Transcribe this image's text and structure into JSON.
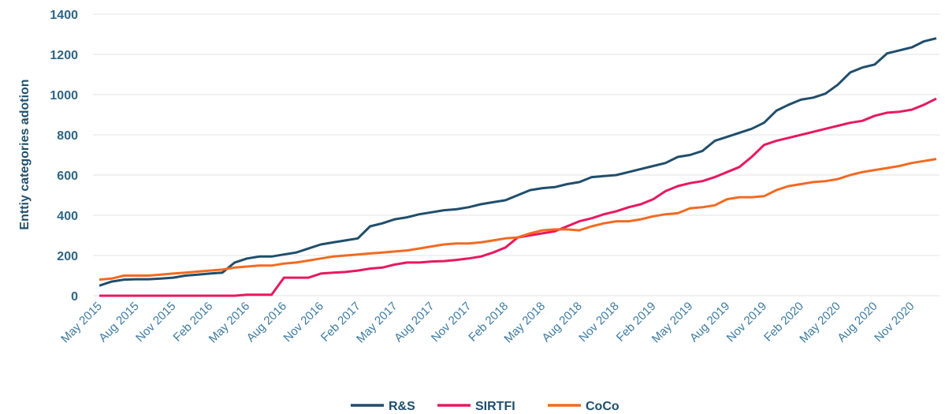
{
  "chart_data": {
    "type": "line",
    "ylabel": "Enttiy categories adotion",
    "categories": [
      "May 2015",
      null,
      null,
      "Aug 2015",
      null,
      null,
      "Nov 2015",
      null,
      null,
      "Feb 2016",
      null,
      null,
      "May 2016",
      null,
      null,
      "Aug 2016",
      null,
      null,
      "Nov 2016",
      null,
      null,
      "Feb 2017",
      null,
      null,
      "May 2017",
      null,
      null,
      "Aug 2017",
      null,
      null,
      "Nov 2017",
      null,
      null,
      "Feb 2018",
      null,
      null,
      "May 2018",
      null,
      null,
      "Aug 2018",
      null,
      null,
      "Nov 2018",
      null,
      null,
      "Feb 2019",
      null,
      null,
      "May 2019",
      null,
      null,
      "Aug 2019",
      null,
      null,
      "Nov 2019",
      null,
      null,
      "Feb 2020",
      null,
      null,
      "May 2020",
      null,
      null,
      "Aug 2020",
      null,
      null,
      "Nov 2020",
      null,
      null
    ],
    "series": [
      {
        "name": "R&S",
        "color": "#1f4e6b",
        "values": [
          50,
          70,
          80,
          82,
          82,
          85,
          90,
          100,
          105,
          110,
          115,
          165,
          185,
          195,
          195,
          205,
          215,
          235,
          255,
          265,
          275,
          285,
          345,
          360,
          380,
          390,
          405,
          415,
          425,
          430,
          440,
          455,
          465,
          475,
          500,
          525,
          535,
          540,
          555,
          565,
          590,
          595,
          600,
          615,
          630,
          645,
          660,
          690,
          700,
          720,
          770,
          790,
          810,
          830,
          860,
          920,
          950,
          975,
          985,
          1005,
          1050,
          1110,
          1135,
          1150,
          1205,
          1220,
          1235,
          1265,
          1280
        ]
      },
      {
        "name": "SIRTFI",
        "color": "#e8185f",
        "values": [
          0,
          0,
          0,
          0,
          0,
          0,
          0,
          0,
          0,
          0,
          0,
          0,
          5,
          5,
          5,
          90,
          90,
          90,
          110,
          115,
          118,
          125,
          135,
          140,
          155,
          165,
          165,
          170,
          172,
          178,
          185,
          195,
          215,
          240,
          290,
          300,
          310,
          320,
          345,
          370,
          385,
          405,
          420,
          440,
          455,
          480,
          520,
          545,
          560,
          570,
          590,
          615,
          640,
          690,
          750,
          770,
          785,
          800,
          815,
          830,
          845,
          860,
          870,
          895,
          910,
          915,
          925,
          950,
          980
        ]
      },
      {
        "name": "CoCo",
        "color": "#f26a21",
        "values": [
          80,
          85,
          100,
          100,
          100,
          105,
          110,
          115,
          120,
          125,
          130,
          140,
          145,
          150,
          150,
          160,
          165,
          175,
          185,
          195,
          200,
          205,
          210,
          215,
          220,
          225,
          235,
          245,
          255,
          260,
          260,
          265,
          275,
          285,
          290,
          310,
          325,
          330,
          330,
          325,
          345,
          360,
          370,
          370,
          380,
          395,
          405,
          410,
          435,
          440,
          450,
          480,
          490,
          490,
          495,
          525,
          545,
          555,
          565,
          570,
          580,
          600,
          615,
          625,
          635,
          645,
          660,
          670,
          680
        ]
      }
    ],
    "ylim": [
      0,
      1400
    ],
    "yticks": [
      0,
      200,
      400,
      600,
      800,
      1000,
      1200,
      1400
    ],
    "grid": true,
    "legend": "bottom"
  }
}
